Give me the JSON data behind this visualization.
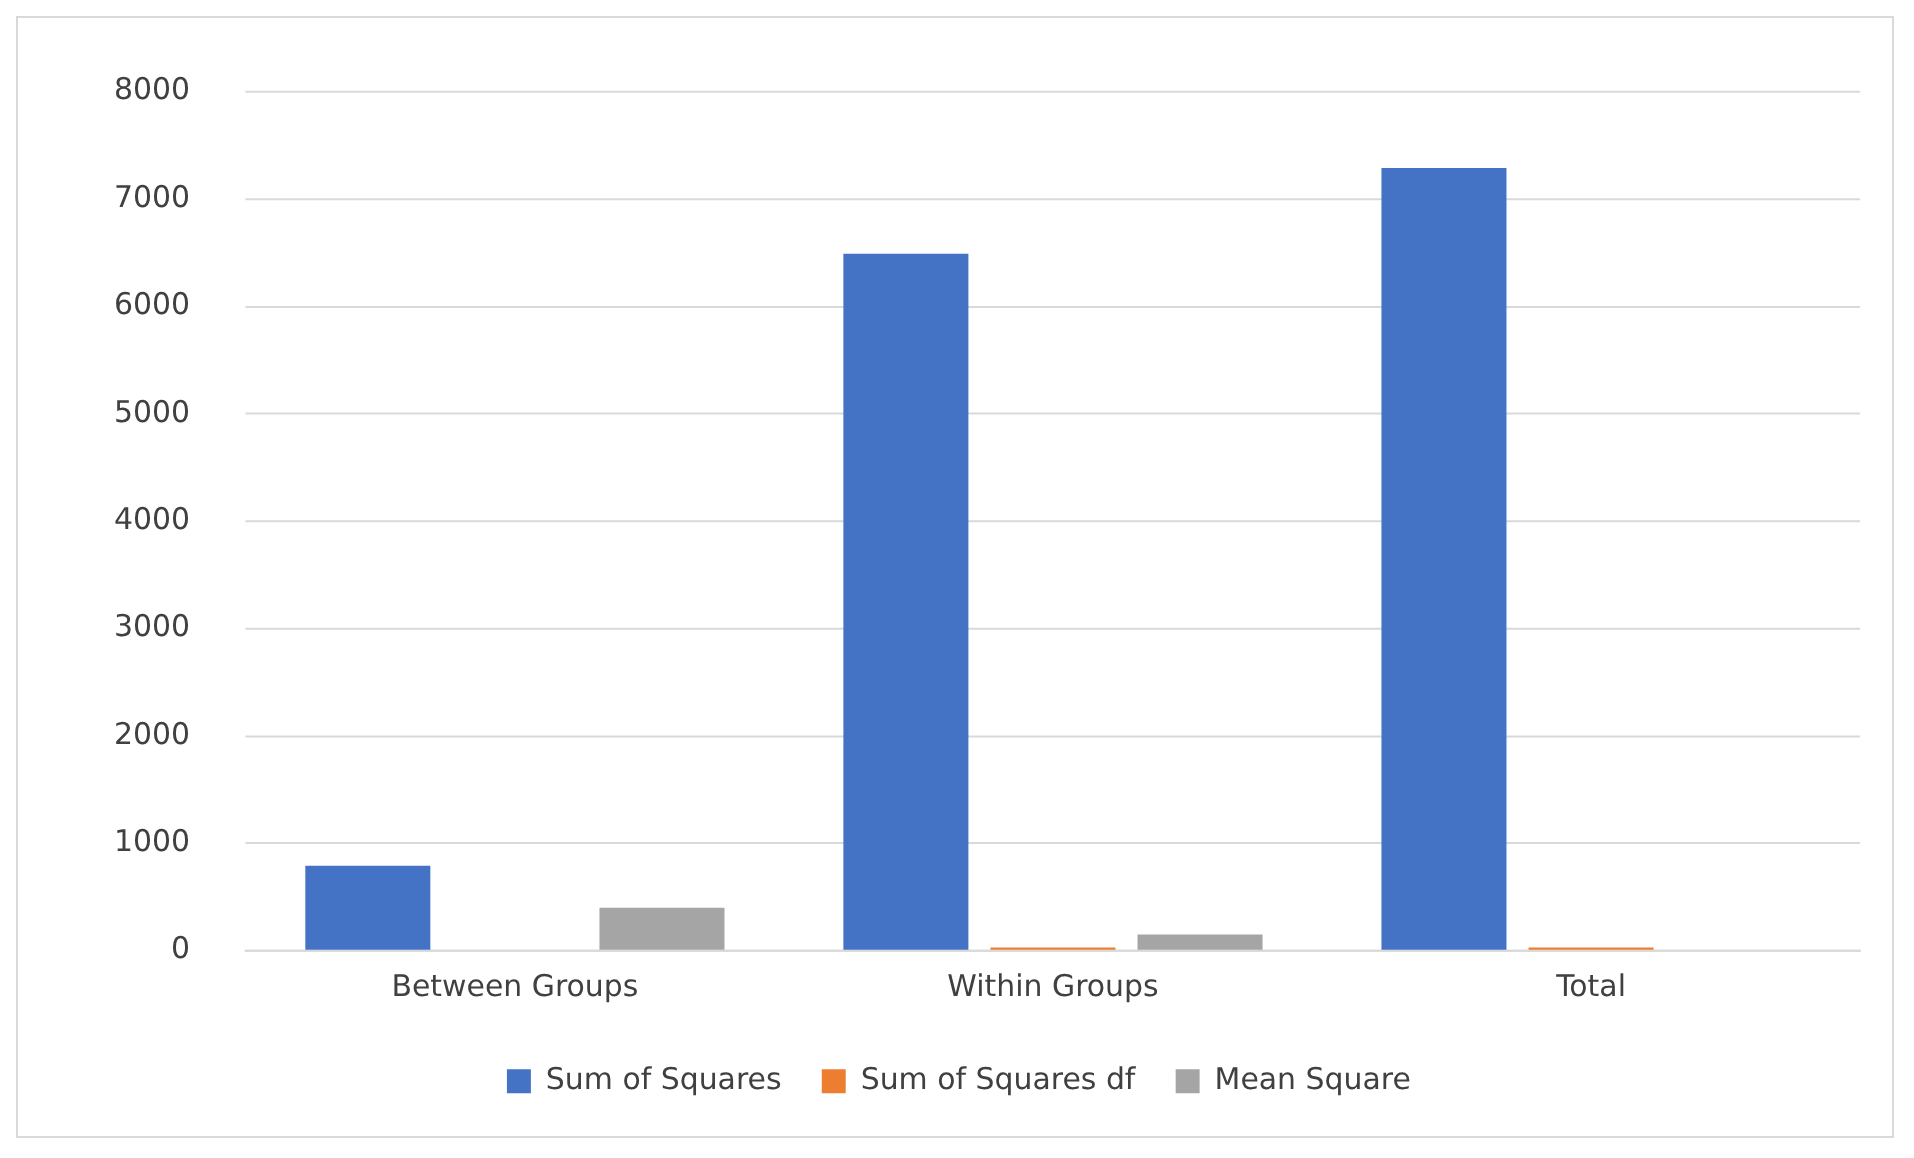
{
  "chart_data": {
    "type": "bar",
    "categories": [
      "Between Groups",
      "Within Groups",
      "Total"
    ],
    "series": [
      {
        "name": "Sum of Squares",
        "color": "#4472c4",
        "values": [
          790,
          6490,
          7290
        ]
      },
      {
        "name": "Sum of Squares df",
        "color": "#ed7d31",
        "values": [
          null,
          30,
          30
        ]
      },
      {
        "name": "Mean Square",
        "color": "#a5a5a5",
        "values": [
          400,
          150,
          null
        ]
      }
    ],
    "ylim": [
      0,
      8000
    ],
    "yticks": [
      0,
      1000,
      2000,
      3000,
      4000,
      5000,
      6000,
      7000,
      8000
    ],
    "grid": "y",
    "legend": "bottom"
  }
}
